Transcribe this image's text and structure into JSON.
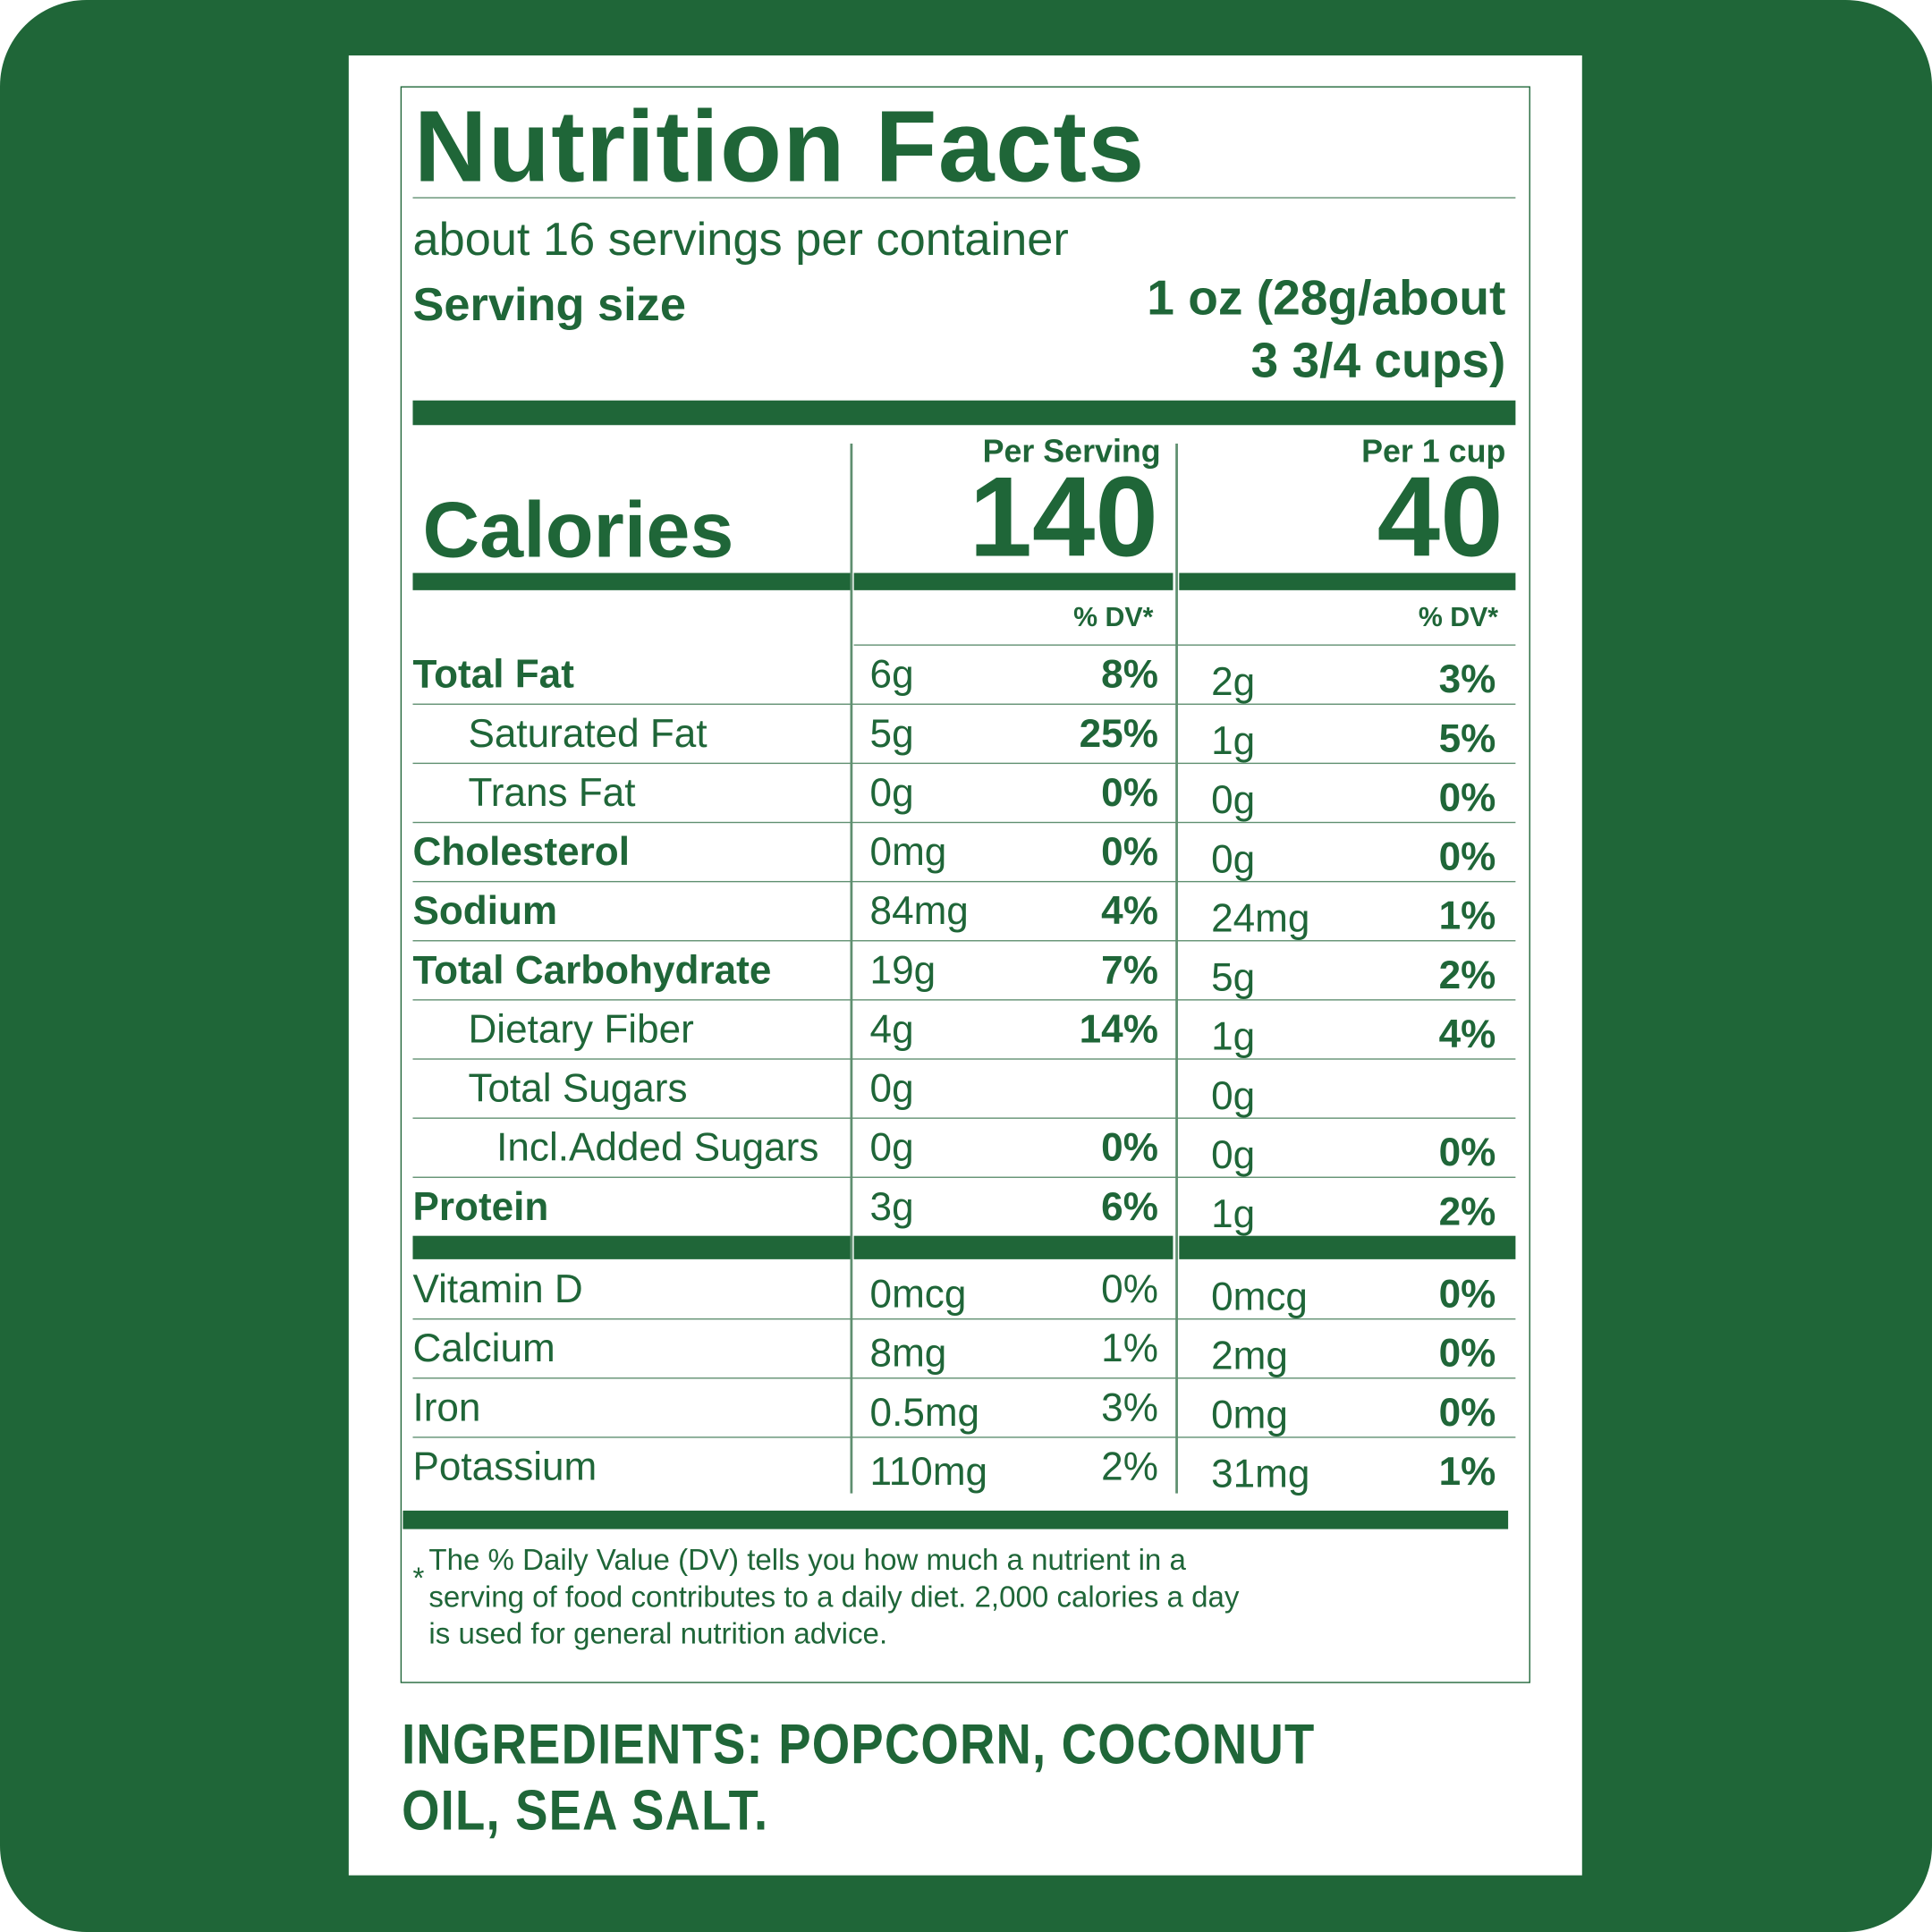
{
  "title": "Nutrition Facts",
  "servings": "about 16 servings per container",
  "serving_size_label": "Serving size",
  "serving_size_value": [
    "1 oz (28g/about",
    "3 3/4 cups)"
  ],
  "calories": {
    "label": "Calories",
    "columns": [
      {
        "header": "Per Serving",
        "value": 140
      },
      {
        "header": "Per 1 cup",
        "value": 40
      }
    ]
  },
  "dv_headers": [
    "% DV*",
    "% DV*"
  ],
  "nutrients": [
    {
      "name": "Total Fat",
      "amount_serving": "6g",
      "dv_serving": "8%",
      "amount_cup": "2g",
      "dv_cup": "3%",
      "subs": [
        {
          "name": "Saturated Fat",
          "amount_serving": "5g",
          "dv_serving": "25%",
          "amount_cup": "1g",
          "dv_cup": "5%"
        },
        {
          "name": "Trans Fat",
          "amount_serving": "0g",
          "dv_serving": "0%",
          "amount_cup": "0g",
          "dv_cup": "0%"
        }
      ]
    },
    {
      "name": "Cholesterol",
      "amount_serving": "0mg",
      "dv_serving": "0%",
      "amount_cup": "0g",
      "dv_cup": "0%"
    },
    {
      "name": "Sodium",
      "amount_serving": "84mg",
      "dv_serving": "4%",
      "amount_cup": "24mg",
      "dv_cup": "1%"
    },
    {
      "name": "Total Carbohydrate",
      "amount_serving": "19g",
      "dv_serving": "7%",
      "amount_cup": "5g",
      "dv_cup": "2%",
      "subs": [
        {
          "name": "Dietary Fiber",
          "amount_serving": "4g",
          "dv_serving": "14%",
          "amount_cup": "1g",
          "dv_cup": "4%"
        },
        {
          "name": "Total Sugars",
          "amount_serving": "0g",
          "amount_cup": "0g",
          "subs": [
            {
              "name": "Incl.Added Sugars",
              "amount_serving": "0g",
              "dv_serving": "0%",
              "amount_cup": "0g",
              "dv_cup": "0%"
            }
          ]
        }
      ]
    },
    {
      "name": "Protein",
      "amount_serving": "3g",
      "dv_serving": "6%",
      "amount_cup": "1g",
      "dv_cup": "2%"
    }
  ],
  "vitamins": [
    {
      "name": "Vitamin D",
      "amount_serving": "0mcg",
      "dv_serving": "0%",
      "amount_cup": "0mcg",
      "dv_cup": "0%"
    },
    {
      "name": "Calcium",
      "amount_serving": "8mg",
      "dv_serving": "1%",
      "amount_cup": "2mg",
      "dv_cup": "0%"
    },
    {
      "name": "Iron",
      "amount_serving": "0.5mg",
      "dv_serving": "3%",
      "amount_cup": "0mg",
      "dv_cup": "0%"
    },
    {
      "name": "Potassium",
      "amount_serving": "110mg",
      "dv_serving": "2%",
      "amount_cup": "31mg",
      "dv_cup": "1%"
    }
  ],
  "footnote_mark": "*",
  "footnote": "The % Daily Value (DV) tells you how much a nutrient in a serving of food contributes to a daily diet. 2,000 calories a day is used for general nutrition advice.",
  "ingredients": "INGREDIENTS: POPCORN, COCONUT OIL, SEA SALT."
}
